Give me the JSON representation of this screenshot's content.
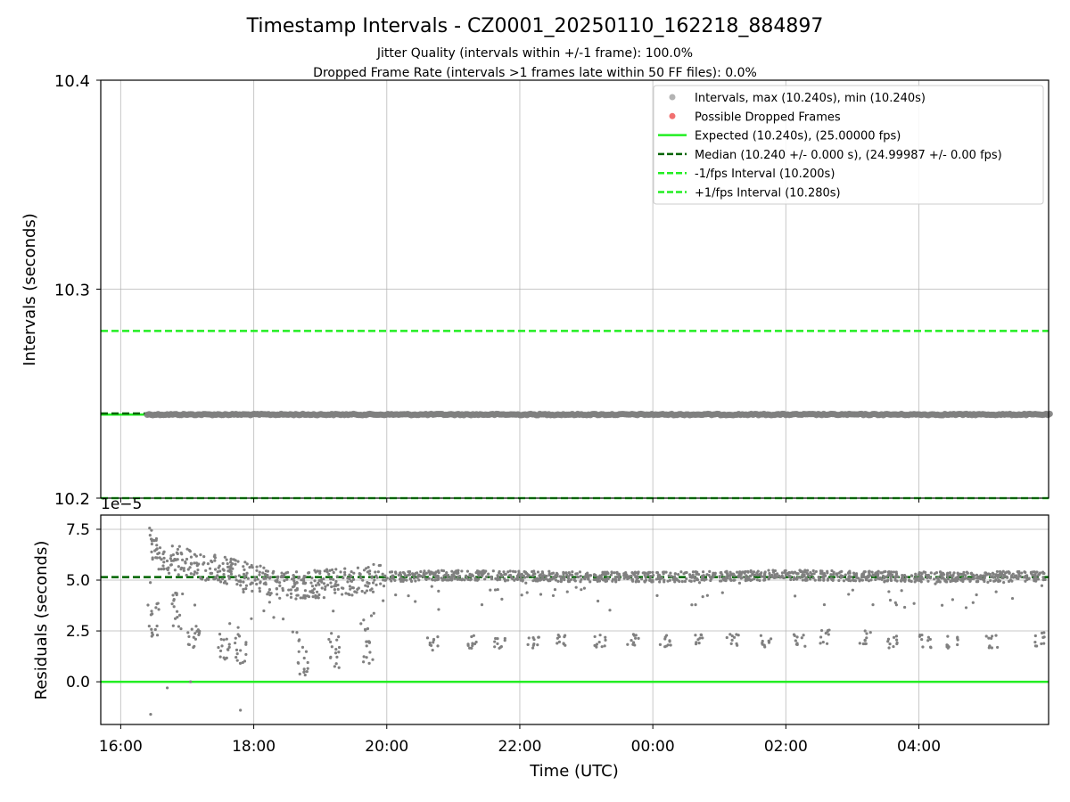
{
  "title": "Timestamp Intervals - CZ0001_20250110_162218_884897",
  "subtitle1": "Jitter Quality (intervals within +/-1 frame): 100.0%",
  "subtitle2": "Dropped Frame Rate (intervals >1 frames late within 50 FF files): 0.0%",
  "colors": {
    "points": "#808080",
    "dropped": "#f06060",
    "expected": "#22ee22",
    "median": "#006400",
    "grid": "#b0b0b0"
  },
  "chart_data": [
    {
      "type": "scatter",
      "panel": "intervals",
      "ylabel": "Intervals (seconds)",
      "xlabel": "",
      "ylim": [
        10.2,
        10.4
      ],
      "yticks": [
        10.2,
        10.3,
        10.4
      ],
      "ytick_labels": [
        "10.2",
        "10.3",
        "10.4"
      ],
      "x_range_hours": [
        15.7,
        29.95
      ],
      "xtick_hours": [
        16,
        18,
        20,
        22,
        24,
        26,
        28
      ],
      "grid": true,
      "legend_placement": "top-right",
      "legend": [
        "Intervals, max (10.240s), min (10.240s)",
        "Possible Dropped Frames",
        "Expected (10.240s), (25.00000 fps)",
        "Median (10.240 +/- 0.000 s), (24.99987 +/- 0.00 fps)",
        "-1/fps Interval (10.200s)",
        "+1/fps Interval (10.280s)"
      ],
      "series": [
        {
          "name": "Intervals, max (10.240s), min (10.240s)",
          "kind": "points",
          "x_start": "16:24",
          "x_end": "05:58",
          "y": 10.24
        },
        {
          "name": "Expected (10.240s), (25.00000 fps)",
          "kind": "hline",
          "y": 10.24
        },
        {
          "name": "Median (10.240 +/- 0.000 s), (24.99987 +/- 0.00 fps)",
          "kind": "hline",
          "y": 10.2405
        },
        {
          "name": "-1/fps Interval (10.200s)",
          "kind": "hline",
          "y": 10.2
        },
        {
          "name": "+1/fps Interval (10.280s)",
          "kind": "hline",
          "y": 10.28
        }
      ]
    },
    {
      "type": "scatter",
      "panel": "residuals",
      "ylabel": "Residuals (seconds)",
      "xlabel": "Time (UTC)",
      "offset_label": "1e−5",
      "ylim": [
        -2.1,
        8.2
      ],
      "yticks": [
        0.0,
        2.5,
        5.0,
        7.5
      ],
      "ytick_labels": [
        "0.0",
        "2.5",
        "5.0",
        "7.5"
      ],
      "xtick_labels": [
        "16:00",
        "18:00",
        "20:00",
        "22:00",
        "00:00",
        "02:00",
        "04:00"
      ],
      "grid": true,
      "median_residual": 5.15,
      "zero_line": 0.0,
      "trend_main": [
        [
          16.42,
          7.0
        ],
        [
          16.6,
          6.1
        ],
        [
          17.0,
          5.9
        ],
        [
          17.5,
          5.5
        ],
        [
          17.9,
          5.2
        ],
        [
          18.0,
          5.1
        ],
        [
          18.5,
          4.7
        ],
        [
          19.0,
          4.8
        ],
        [
          19.6,
          5.0
        ],
        [
          20.0,
          5.15
        ],
        [
          21.0,
          5.25
        ],
        [
          22.0,
          5.2
        ],
        [
          23.0,
          5.15
        ],
        [
          24.0,
          5.15
        ],
        [
          25.0,
          5.2
        ],
        [
          26.0,
          5.25
        ],
        [
          27.0,
          5.2
        ],
        [
          28.0,
          5.15
        ],
        [
          29.9,
          5.2
        ]
      ],
      "low_band_clusters": [
        [
          16.5,
          3.0
        ],
        [
          16.85,
          3.5
        ],
        [
          17.1,
          2.5
        ],
        [
          17.55,
          2.0
        ],
        [
          17.8,
          1.8
        ],
        [
          18.75,
          1.2
        ],
        [
          19.2,
          1.5
        ],
        [
          19.7,
          1.8
        ],
        [
          20.7,
          1.9
        ],
        [
          21.3,
          2.0
        ],
        [
          21.7,
          1.9
        ],
        [
          22.2,
          1.9
        ],
        [
          22.6,
          2.0
        ],
        [
          23.2,
          2.0
        ],
        [
          23.7,
          2.0
        ],
        [
          24.2,
          2.0
        ],
        [
          24.7,
          2.0
        ],
        [
          25.2,
          2.0
        ],
        [
          25.7,
          2.0
        ],
        [
          26.2,
          2.0
        ],
        [
          26.6,
          2.2
        ],
        [
          27.2,
          2.2
        ],
        [
          27.6,
          2.0
        ],
        [
          28.1,
          2.0
        ],
        [
          28.5,
          2.0
        ],
        [
          29.1,
          2.0
        ],
        [
          29.8,
          2.1
        ]
      ]
    }
  ]
}
